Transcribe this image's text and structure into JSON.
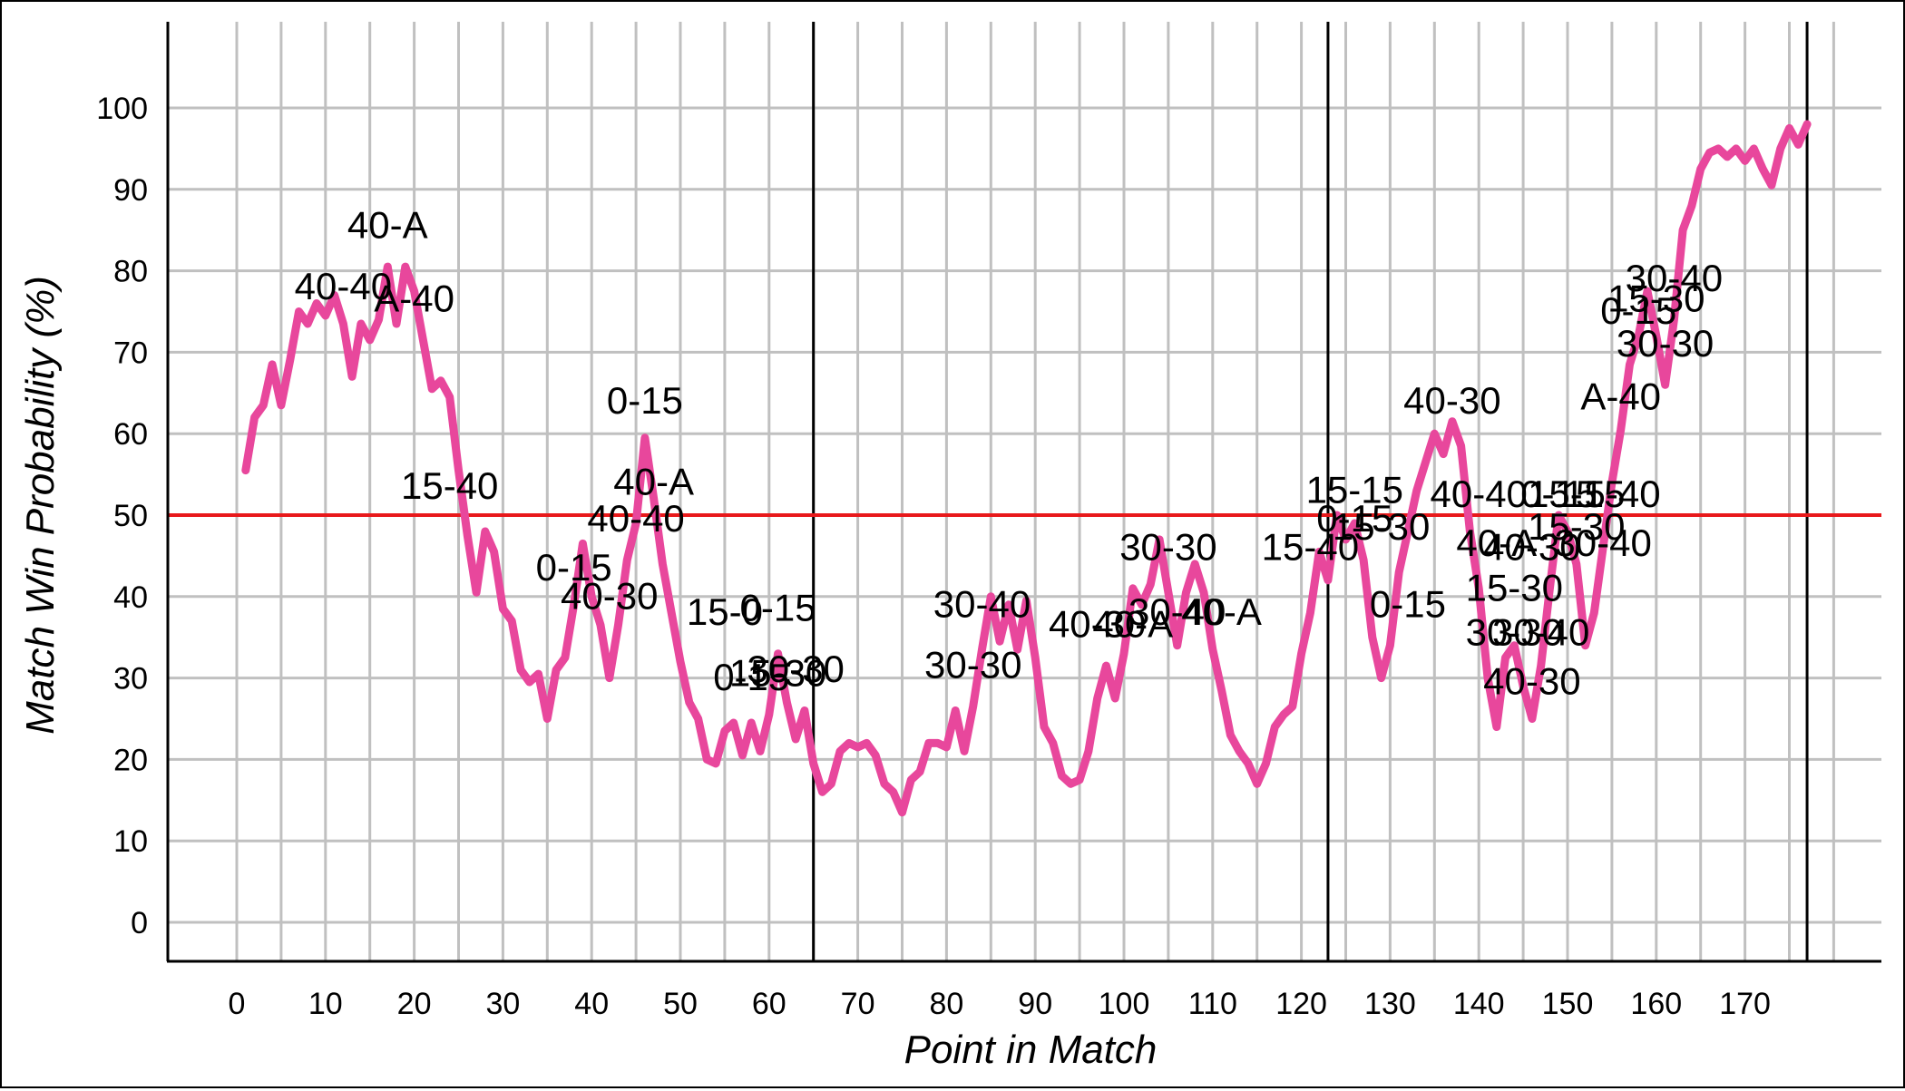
{
  "chart_data": {
    "type": "line",
    "title": "",
    "xlabel": "Point in Match",
    "ylabel": "Match Win Probability (%)",
    "xlim": [
      -8,
      184
    ],
    "ylim": [
      -5,
      110
    ],
    "x_ticks": [
      0,
      10,
      20,
      30,
      40,
      50,
      60,
      70,
      80,
      90,
      100,
      110,
      120,
      130,
      140,
      150,
      160,
      170
    ],
    "y_ticks": [
      0,
      10,
      20,
      30,
      40,
      50,
      60,
      70,
      80,
      90,
      100
    ],
    "grid": true,
    "reference_line": {
      "y": 50,
      "color": "#e8191b"
    },
    "set_boundaries": [
      65,
      123,
      177
    ],
    "series": [
      {
        "color": "#e8479c",
        "x": [
          1,
          2,
          3,
          4,
          5,
          6,
          7,
          8,
          9,
          10,
          11,
          12,
          13,
          14,
          15,
          16,
          17,
          18,
          19,
          20,
          21,
          22,
          23,
          24,
          25,
          26,
          27,
          28,
          29,
          30,
          31,
          32,
          33,
          34,
          35,
          36,
          37,
          38,
          39,
          40,
          41,
          42,
          43,
          44,
          45,
          46,
          47,
          48,
          49,
          50,
          51,
          52,
          53,
          54,
          55,
          56,
          57,
          58,
          59,
          60,
          61,
          62,
          63,
          64,
          65,
          66,
          67,
          68,
          69,
          70,
          71,
          72,
          73,
          74,
          75,
          76,
          77,
          78,
          79,
          80,
          81,
          82,
          83,
          84,
          85,
          86,
          87,
          88,
          89,
          90,
          91,
          92,
          93,
          94,
          95,
          96,
          97,
          98,
          99,
          100,
          101,
          102,
          103,
          104,
          105,
          106,
          107,
          108,
          109,
          110,
          111,
          112,
          113,
          114,
          115,
          116,
          117,
          118,
          119,
          120,
          121,
          122,
          123,
          124,
          125,
          126,
          127,
          128,
          129,
          130,
          131,
          132,
          133,
          134,
          135,
          136,
          137,
          138,
          139,
          140,
          141,
          142,
          143,
          144,
          145,
          146,
          147,
          148,
          149,
          150,
          151,
          152,
          153,
          154,
          155,
          156,
          157,
          158,
          159,
          160,
          161,
          162,
          163,
          164,
          165,
          166,
          167,
          168,
          169,
          170,
          171,
          172,
          173,
          174,
          175,
          176,
          177
        ],
        "y": [
          55.5,
          62,
          63.5,
          68.5,
          63.5,
          69,
          75,
          73.5,
          76,
          74.5,
          77,
          73.5,
          67,
          73.5,
          71.5,
          74,
          80.5,
          73.5,
          80.5,
          77.5,
          71.5,
          65.5,
          66.5,
          64.5,
          55.5,
          47.5,
          40.5,
          48,
          45.5,
          38.5,
          37,
          31,
          29.5,
          30.5,
          25,
          31,
          32.5,
          39,
          46.5,
          40,
          36.5,
          30,
          36.5,
          44.5,
          49,
          59.5,
          52,
          44,
          38,
          32,
          27,
          25,
          20,
          19.5,
          23.5,
          24.5,
          20.5,
          24.5,
          21,
          25.5,
          33,
          27,
          22.5,
          26,
          19.5,
          16,
          17,
          21,
          22,
          21.5,
          22,
          20.5,
          17,
          16,
          13.5,
          17.5,
          18.5,
          22,
          22,
          21.5,
          26,
          21,
          26.5,
          33.5,
          40,
          34.5,
          39,
          33.5,
          39.5,
          32.5,
          24,
          22,
          18,
          17,
          17.5,
          21,
          27.5,
          31.5,
          27.5,
          33,
          41,
          39,
          41.5,
          47,
          40.5,
          34,
          40.5,
          44,
          40.5,
          33.5,
          28.5,
          23,
          21,
          19.5,
          17,
          19.5,
          24,
          25.5,
          26.5,
          33,
          38,
          45.5,
          42,
          50,
          47,
          49,
          44.5,
          35,
          30,
          34,
          43,
          48,
          53,
          56.5,
          60,
          57.5,
          61.5,
          58.5,
          48,
          41,
          30,
          24,
          32.5,
          34,
          29,
          25,
          31.5,
          41,
          50,
          48,
          44,
          34,
          38,
          46,
          54,
          60.5,
          68.5,
          72,
          77.5,
          72,
          66,
          74,
          85,
          88,
          92.5,
          94.5,
          95,
          94,
          95,
          93.5,
          95,
          92.5,
          90.5,
          95,
          97.5,
          95.5,
          98
        ]
      }
    ],
    "annotations": [
      {
        "text": "40-A",
        "x": 17,
        "y": 84
      },
      {
        "text": "40-40",
        "x": 12,
        "y": 76.5
      },
      {
        "text": "A-40",
        "x": 20,
        "y": 75
      },
      {
        "text": "0-15",
        "x": 46,
        "y": 62.5
      },
      {
        "text": "15-40",
        "x": 24,
        "y": 52
      },
      {
        "text": "40-A",
        "x": 47,
        "y": 52.5
      },
      {
        "text": "40-40",
        "x": 45,
        "y": 48
      },
      {
        "text": "0-15",
        "x": 38,
        "y": 42
      },
      {
        "text": "40-30",
        "x": 42,
        "y": 38.5
      },
      {
        "text": "15-0",
        "x": 55,
        "y": 36.5
      },
      {
        "text": "0-15",
        "x": 61,
        "y": 37
      },
      {
        "text": "0-15",
        "x": 58,
        "y": 28.5
      },
      {
        "text": "15-30",
        "x": 61,
        "y": 29
      },
      {
        "text": "30-30",
        "x": 63,
        "y": 29.5
      },
      {
        "text": "30-40",
        "x": 84,
        "y": 37.5
      },
      {
        "text": "30-30",
        "x": 83,
        "y": 30
      },
      {
        "text": "40-30",
        "x": 97,
        "y": 35
      },
      {
        "text": "40-A",
        "x": 101,
        "y": 35
      },
      {
        "text": "30-30",
        "x": 105,
        "y": 44.5
      },
      {
        "text": "30-40",
        "x": 106,
        "y": 36.5
      },
      {
        "text": "40-A",
        "x": 111,
        "y": 36.5
      },
      {
        "text": "15-15",
        "x": 126,
        "y": 51.5
      },
      {
        "text": "0-15",
        "x": 126,
        "y": 48
      },
      {
        "text": "15-30",
        "x": 129,
        "y": 47
      },
      {
        "text": "15-40",
        "x": 121,
        "y": 44.5
      },
      {
        "text": "0-15",
        "x": 132,
        "y": 37.5
      },
      {
        "text": "40-30",
        "x": 137,
        "y": 62.5
      },
      {
        "text": "40-40",
        "x": 140,
        "y": 51
      },
      {
        "text": "40-A",
        "x": 142,
        "y": 45
      },
      {
        "text": "40-30",
        "x": 146,
        "y": 44.5
      },
      {
        "text": "15-30",
        "x": 144,
        "y": 39.5
      },
      {
        "text": "30-30",
        "x": 144,
        "y": 34
      },
      {
        "text": "30-40",
        "x": 147,
        "y": 34
      },
      {
        "text": "40-30",
        "x": 146,
        "y": 28
      },
      {
        "text": "15-15",
        "x": 151,
        "y": 51
      },
      {
        "text": "0-15",
        "x": 149,
        "y": 51
      },
      {
        "text": "15-40",
        "x": 155,
        "y": 51
      },
      {
        "text": "15-30",
        "x": 151,
        "y": 47
      },
      {
        "text": "30-40",
        "x": 154,
        "y": 45
      },
      {
        "text": "A-40",
        "x": 156,
        "y": 63
      },
      {
        "text": "30-40",
        "x": 162,
        "y": 77.5
      },
      {
        "text": "15-30",
        "x": 160,
        "y": 75
      },
      {
        "text": "0-15",
        "x": 158,
        "y": 73.5
      },
      {
        "text": "30-30",
        "x": 161,
        "y": 69.5
      }
    ]
  }
}
